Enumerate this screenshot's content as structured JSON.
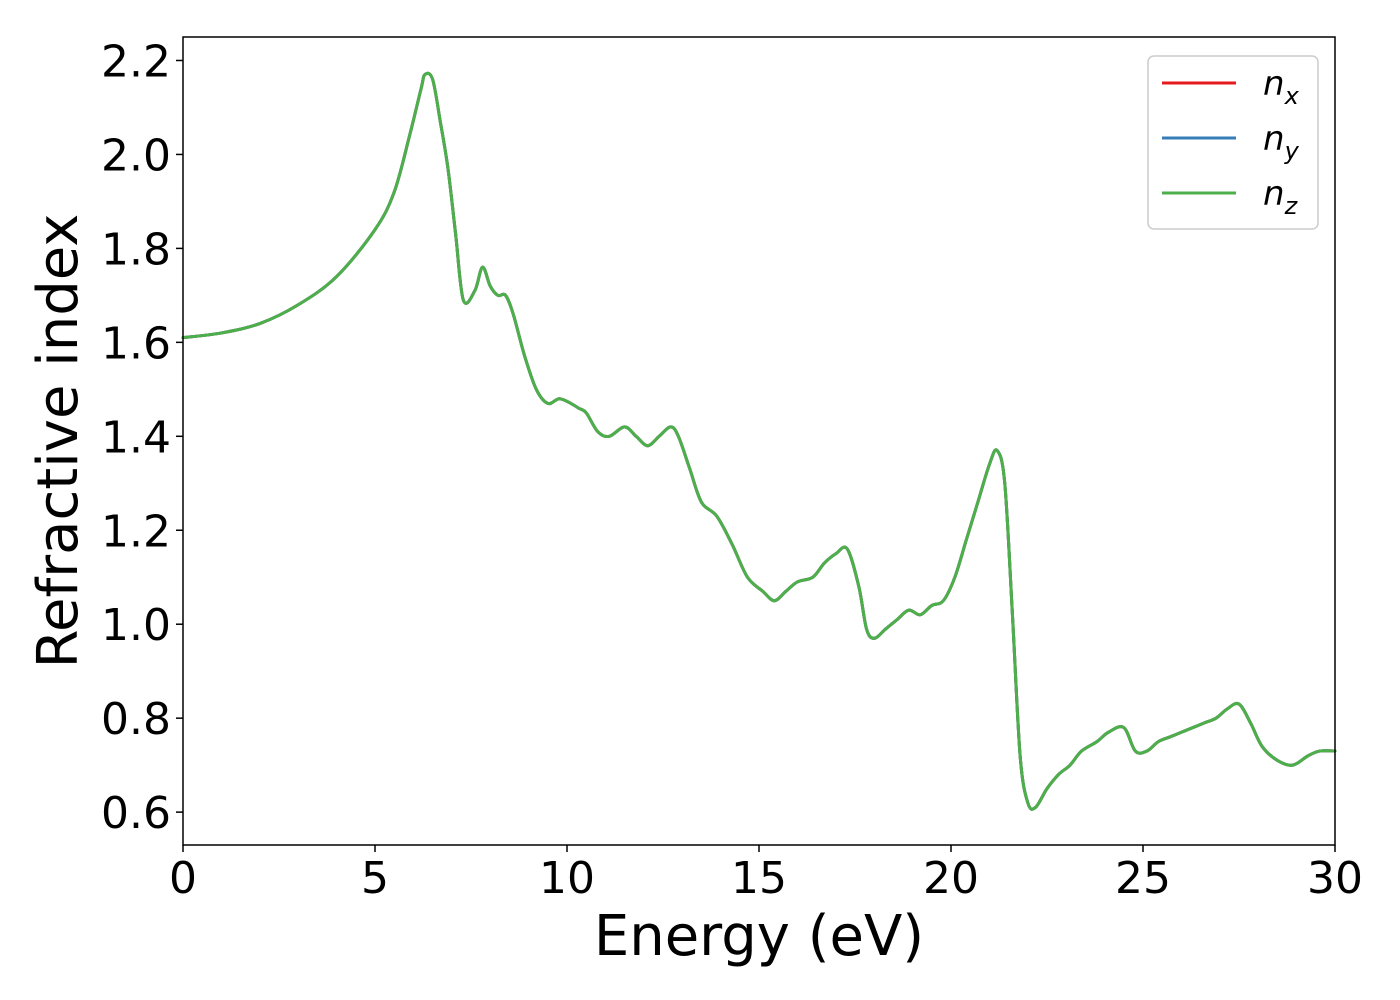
{
  "chart_data": {
    "type": "line",
    "xlabel": "Energy (eV)",
    "ylabel": "Refractive index",
    "xlim": [
      0,
      30
    ],
    "ylim": [
      0.53,
      2.25
    ],
    "xticks": [
      0,
      5,
      10,
      15,
      20,
      25,
      30
    ],
    "xtick_labels": [
      "0",
      "5",
      "10",
      "15",
      "20",
      "25",
      "30"
    ],
    "yticks": [
      0.6,
      0.8,
      1.0,
      1.2,
      1.4,
      1.6,
      1.8,
      2.0,
      2.2
    ],
    "ytick_labels": [
      "0.6",
      "0.8",
      "1.0",
      "1.2",
      "1.4",
      "1.6",
      "1.8",
      "2.0",
      "2.2"
    ],
    "grid": false,
    "legend_position": "top-right",
    "series": [
      {
        "name": "n",
        "subscript": "x",
        "color": "#e41a1c",
        "x": [
          0,
          1,
          2,
          3,
          4,
          5,
          5.5,
          5.9,
          6.2,
          6.3,
          6.5,
          6.7,
          6.9,
          7.1,
          7.3,
          7.6,
          7.8,
          8.0,
          8.2,
          8.4,
          8.6,
          8.9,
          9.2,
          9.5,
          9.8,
          10.1,
          10.3,
          10.5,
          10.8,
          11.1,
          11.5,
          11.8,
          12.1,
          12.4,
          12.7,
          12.9,
          13.2,
          13.5,
          13.9,
          14.3,
          14.7,
          15.1,
          15.4,
          15.7,
          16.0,
          16.4,
          16.7,
          17.0,
          17.3,
          17.6,
          17.8,
          18.0,
          18.3,
          18.6,
          18.9,
          19.2,
          19.5,
          19.8,
          20.1,
          20.4,
          20.7,
          21.0,
          21.2,
          21.4,
          21.6,
          21.8,
          22.0,
          22.2,
          22.5,
          22.8,
          23.1,
          23.4,
          23.8,
          24.1,
          24.5,
          24.8,
          25.1,
          25.4,
          25.7,
          26.0,
          26.3,
          26.6,
          26.9,
          27.2,
          27.5,
          27.8,
          28.1,
          28.5,
          28.9,
          29.3,
          29.6,
          30.0
        ],
        "values": [
          1.61,
          1.62,
          1.64,
          1.68,
          1.74,
          1.84,
          1.92,
          2.04,
          2.14,
          2.17,
          2.16,
          2.07,
          1.97,
          1.83,
          1.69,
          1.71,
          1.76,
          1.72,
          1.7,
          1.7,
          1.66,
          1.57,
          1.5,
          1.47,
          1.48,
          1.47,
          1.46,
          1.45,
          1.41,
          1.4,
          1.42,
          1.4,
          1.38,
          1.4,
          1.42,
          1.4,
          1.33,
          1.26,
          1.23,
          1.17,
          1.1,
          1.07,
          1.05,
          1.07,
          1.09,
          1.1,
          1.13,
          1.15,
          1.16,
          1.08,
          0.99,
          0.97,
          0.99,
          1.01,
          1.03,
          1.02,
          1.04,
          1.05,
          1.1,
          1.18,
          1.26,
          1.34,
          1.37,
          1.3,
          1.02,
          0.72,
          0.62,
          0.61,
          0.65,
          0.68,
          0.7,
          0.73,
          0.75,
          0.77,
          0.78,
          0.73,
          0.73,
          0.75,
          0.76,
          0.77,
          0.78,
          0.79,
          0.8,
          0.82,
          0.83,
          0.79,
          0.74,
          0.71,
          0.7,
          0.72,
          0.73,
          0.73
        ]
      },
      {
        "name": "n",
        "subscript": "y",
        "color": "#377eb8",
        "x": [
          0,
          1,
          2,
          3,
          4,
          5,
          5.5,
          5.9,
          6.2,
          6.3,
          6.5,
          6.7,
          6.9,
          7.1,
          7.3,
          7.6,
          7.8,
          8.0,
          8.2,
          8.4,
          8.6,
          8.9,
          9.2,
          9.5,
          9.8,
          10.1,
          10.3,
          10.5,
          10.8,
          11.1,
          11.5,
          11.8,
          12.1,
          12.4,
          12.7,
          12.9,
          13.2,
          13.5,
          13.9,
          14.3,
          14.7,
          15.1,
          15.4,
          15.7,
          16.0,
          16.4,
          16.7,
          17.0,
          17.3,
          17.6,
          17.8,
          18.0,
          18.3,
          18.6,
          18.9,
          19.2,
          19.5,
          19.8,
          20.1,
          20.4,
          20.7,
          21.0,
          21.2,
          21.4,
          21.6,
          21.8,
          22.0,
          22.2,
          22.5,
          22.8,
          23.1,
          23.4,
          23.8,
          24.1,
          24.5,
          24.8,
          25.1,
          25.4,
          25.7,
          26.0,
          26.3,
          26.6,
          26.9,
          27.2,
          27.5,
          27.8,
          28.1,
          28.5,
          28.9,
          29.3,
          29.6,
          30.0
        ],
        "values": [
          1.61,
          1.62,
          1.64,
          1.68,
          1.74,
          1.84,
          1.92,
          2.04,
          2.14,
          2.17,
          2.16,
          2.07,
          1.97,
          1.83,
          1.69,
          1.71,
          1.76,
          1.72,
          1.7,
          1.7,
          1.66,
          1.57,
          1.5,
          1.47,
          1.48,
          1.47,
          1.46,
          1.45,
          1.41,
          1.4,
          1.42,
          1.4,
          1.38,
          1.4,
          1.42,
          1.4,
          1.33,
          1.26,
          1.23,
          1.17,
          1.1,
          1.07,
          1.05,
          1.07,
          1.09,
          1.1,
          1.13,
          1.15,
          1.16,
          1.08,
          0.99,
          0.97,
          0.99,
          1.01,
          1.03,
          1.02,
          1.04,
          1.05,
          1.1,
          1.18,
          1.26,
          1.34,
          1.37,
          1.3,
          1.02,
          0.72,
          0.62,
          0.61,
          0.65,
          0.68,
          0.7,
          0.73,
          0.75,
          0.77,
          0.78,
          0.73,
          0.73,
          0.75,
          0.76,
          0.77,
          0.78,
          0.79,
          0.8,
          0.82,
          0.83,
          0.79,
          0.74,
          0.71,
          0.7,
          0.72,
          0.73,
          0.73
        ]
      },
      {
        "name": "n",
        "subscript": "z",
        "color": "#4daf4a",
        "x": [
          0,
          1,
          2,
          3,
          4,
          5,
          5.5,
          5.9,
          6.2,
          6.3,
          6.5,
          6.7,
          6.9,
          7.1,
          7.3,
          7.6,
          7.8,
          8.0,
          8.2,
          8.4,
          8.6,
          8.9,
          9.2,
          9.5,
          9.8,
          10.1,
          10.3,
          10.5,
          10.8,
          11.1,
          11.5,
          11.8,
          12.1,
          12.4,
          12.7,
          12.9,
          13.2,
          13.5,
          13.9,
          14.3,
          14.7,
          15.1,
          15.4,
          15.7,
          16.0,
          16.4,
          16.7,
          17.0,
          17.3,
          17.6,
          17.8,
          18.0,
          18.3,
          18.6,
          18.9,
          19.2,
          19.5,
          19.8,
          20.1,
          20.4,
          20.7,
          21.0,
          21.2,
          21.4,
          21.6,
          21.8,
          22.0,
          22.2,
          22.5,
          22.8,
          23.1,
          23.4,
          23.8,
          24.1,
          24.5,
          24.8,
          25.1,
          25.4,
          25.7,
          26.0,
          26.3,
          26.6,
          26.9,
          27.2,
          27.5,
          27.8,
          28.1,
          28.5,
          28.9,
          29.3,
          29.6,
          30.0
        ],
        "values": [
          1.61,
          1.62,
          1.64,
          1.68,
          1.74,
          1.84,
          1.92,
          2.04,
          2.14,
          2.17,
          2.16,
          2.07,
          1.97,
          1.83,
          1.69,
          1.71,
          1.76,
          1.72,
          1.7,
          1.7,
          1.66,
          1.57,
          1.5,
          1.47,
          1.48,
          1.47,
          1.46,
          1.45,
          1.41,
          1.4,
          1.42,
          1.4,
          1.38,
          1.4,
          1.42,
          1.4,
          1.33,
          1.26,
          1.23,
          1.17,
          1.1,
          1.07,
          1.05,
          1.07,
          1.09,
          1.1,
          1.13,
          1.15,
          1.16,
          1.08,
          0.99,
          0.97,
          0.99,
          1.01,
          1.03,
          1.02,
          1.04,
          1.05,
          1.1,
          1.18,
          1.26,
          1.34,
          1.37,
          1.3,
          1.02,
          0.72,
          0.62,
          0.61,
          0.65,
          0.68,
          0.7,
          0.73,
          0.75,
          0.77,
          0.78,
          0.73,
          0.73,
          0.75,
          0.76,
          0.77,
          0.78,
          0.79,
          0.8,
          0.82,
          0.83,
          0.79,
          0.74,
          0.71,
          0.7,
          0.72,
          0.73,
          0.73
        ]
      }
    ]
  }
}
